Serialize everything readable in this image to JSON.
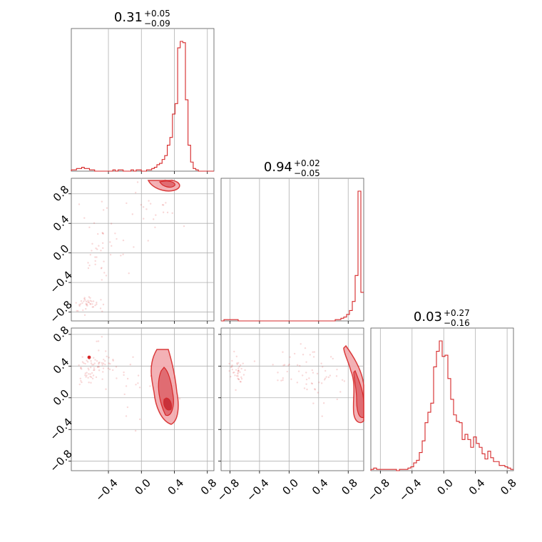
{
  "chart_data": {
    "type": "corner",
    "color": "#d62728",
    "grid": true,
    "parameters": [
      {
        "median": "0.31",
        "plus": "+0.05",
        "minus": "−0.09",
        "range": [
          -0.85,
          0.88
        ],
        "ticks": [
          -0.4,
          0.0,
          0.4,
          0.8
        ],
        "tick_labels": [
          "−0.4",
          "0.0",
          "0.4",
          "0.8"
        ],
        "hist": [
          1,
          1,
          2,
          2,
          3,
          2,
          2,
          1,
          1,
          0,
          0,
          0,
          0,
          0,
          0,
          0,
          1,
          0,
          1,
          1,
          0,
          0,
          0,
          1,
          0,
          1,
          1,
          0,
          0,
          1,
          1,
          2,
          3,
          5,
          6,
          9,
          12,
          20,
          26,
          44,
          52,
          95,
          100,
          99,
          55,
          20,
          7,
          2,
          1,
          0,
          0,
          0,
          0,
          0,
          0
        ]
      },
      {
        "median": "0.94",
        "plus": "+0.02",
        "minus": "−0.05",
        "range": [
          -0.92,
          1.01
        ],
        "ticks": [
          -0.8,
          -0.4,
          0.0,
          0.4,
          0.8
        ],
        "tick_labels": [
          "−0.8",
          "−0.4",
          "0.0",
          "0.4",
          "0.8"
        ],
        "hist": [
          0,
          1,
          1,
          1,
          1,
          1,
          0,
          0,
          0,
          0,
          0,
          0,
          0,
          0,
          0,
          0,
          0,
          0,
          0,
          0,
          0,
          0,
          0,
          0,
          0,
          0,
          0,
          0,
          0,
          0,
          0,
          0,
          0,
          0,
          0,
          0,
          0,
          0,
          0,
          0,
          1,
          1,
          2,
          3,
          5,
          8,
          15,
          35,
          100,
          22
        ]
      },
      {
        "median": "0.03",
        "plus": "+0.27",
        "minus": "−0.16",
        "range": [
          -0.92,
          0.88
        ],
        "ticks": [
          -0.8,
          -0.4,
          0.0,
          0.4,
          0.8
        ],
        "tick_labels": [
          "−0.8",
          "−0.4",
          "0.0",
          "0.4",
          "0.8"
        ],
        "hist": [
          1,
          2,
          1,
          1,
          1,
          1,
          1,
          1,
          1,
          0,
          1,
          1,
          1,
          2,
          3,
          6,
          8,
          14,
          23,
          37,
          45,
          52,
          80,
          92,
          100,
          88,
          89,
          71,
          55,
          43,
          38,
          37,
          24,
          28,
          24,
          18,
          26,
          21,
          18,
          13,
          9,
          15,
          10,
          7,
          7,
          4,
          4,
          3,
          2,
          1
        ]
      }
    ]
  }
}
